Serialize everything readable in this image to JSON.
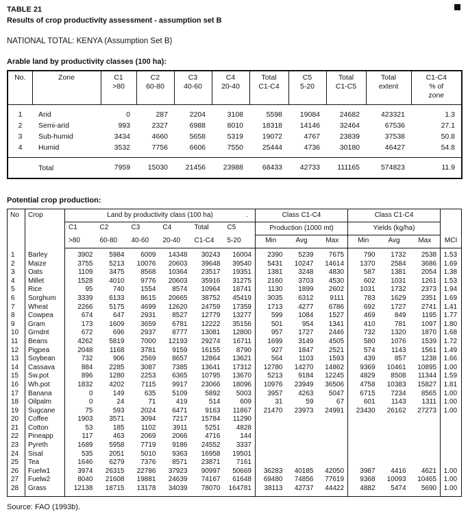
{
  "page": {
    "table_label": "TABLE 21",
    "title": "Results of crop productivity assessment - assumption set B",
    "subtitle": "NATIONAL TOTAL: KENYA (Assumption Set B)",
    "source": "Source: FAO (1993b)."
  },
  "arable_table": {
    "caption": "Arable land by productivity classes (100 ha):",
    "headers": [
      [
        "No."
      ],
      [
        "Zone"
      ],
      [
        "C1",
        ">80"
      ],
      [
        "C2",
        "60-80"
      ],
      [
        "C3",
        "40-60"
      ],
      [
        "C4",
        "20-40"
      ],
      [
        "Total",
        "C1-C4"
      ],
      [
        "C5",
        "5-20"
      ],
      [
        "Total",
        "C1-C5"
      ],
      [
        "Total",
        "extent"
      ],
      [
        "C1-C4",
        "% of",
        "zone"
      ]
    ],
    "rows": [
      [
        "1",
        "Arid",
        "0",
        "287",
        "2204",
        "3108",
        "5598",
        "19084",
        "24682",
        "423321",
        "1.3"
      ],
      [
        "2",
        "Semi-arid",
        "993",
        "2327",
        "6988",
        "8010",
        "18318",
        "14146",
        "32464",
        "67536",
        "27.1"
      ],
      [
        "3",
        "Sub-humid",
        "3434",
        "4660",
        "5658",
        "5319",
        "19072",
        "4767",
        "23839",
        "37538",
        "50.8"
      ],
      [
        "4",
        "Humid",
        "3532",
        "7756",
        "6606",
        "7550",
        "25444",
        "4736",
        "30180",
        "46427",
        "54.8"
      ]
    ],
    "total_row": [
      "",
      "Total",
      "7959",
      "15030",
      "21456",
      "23988",
      "68433",
      "42733",
      "111165",
      "574823",
      "11.9"
    ]
  },
  "production_table": {
    "caption": "Potential crop production:",
    "group_headers": {
      "no": "No",
      "crop": "Crop",
      "land": "Land by productivity class (100 ha)",
      "dot": ".",
      "class_production": "Class C1-C4",
      "class_yields": "Class C1-C4",
      "production": "Production (1000 mt)",
      "yields": "Yields (kg/ha)",
      "mci": "MCI"
    },
    "sub_headers": {
      "land_top": [
        "C1",
        "C2",
        "C3",
        "C4",
        "Total",
        "C5"
      ],
      "land_bottom": [
        ">80",
        "60-80",
        "40-60",
        "20-40",
        "C1-C4",
        "5-20"
      ],
      "minavgmax": [
        "Min",
        "Avg",
        "Max"
      ]
    },
    "rows": [
      [
        "1",
        "Barley",
        "3902",
        "5984",
        "6009",
        "14348",
        "30243",
        "16004",
        "2390",
        "5239",
        "7675",
        "790",
        "1732",
        "2538",
        "1.53"
      ],
      [
        "2",
        "Maize",
        "3755",
        "5213",
        "10076",
        "20603",
        "39648",
        "39540",
        "5431",
        "10247",
        "14614",
        "1370",
        "2584",
        "3686",
        "1.69"
      ],
      [
        "3",
        "Oats",
        "1109",
        "3475",
        "8568",
        "10364",
        "23517",
        "19351",
        "1381",
        "3248",
        "4830",
        "587",
        "1381",
        "2054",
        "1.38"
      ],
      [
        "4",
        "Millet",
        "1528",
        "4010",
        "9776",
        "20603",
        "35916",
        "31275",
        "2160",
        "3703",
        "4530",
        "602",
        "1031",
        "1261",
        "1.53"
      ],
      [
        "5",
        "Rice",
        "95",
        "740",
        "1554",
        "8574",
        "10964",
        "18741",
        "1130",
        "1899",
        "2602",
        "1031",
        "1732",
        "2373",
        "1.94"
      ],
      [
        "6",
        "Sorghum",
        "3339",
        "6133",
        "8615",
        "20665",
        "38752",
        "45419",
        "3035",
        "6312",
        "9111",
        "783",
        "1629",
        "2351",
        "1.69"
      ],
      [
        "7",
        "Wheat",
        "2266",
        "5175",
        "4699",
        "12620",
        "24759",
        "17359",
        "1713",
        "4277",
        "6786",
        "692",
        "1727",
        "2741",
        "1.41"
      ],
      [
        "8",
        "Cowpea",
        "674",
        "647",
        "2931",
        "8527",
        "12779",
        "13277",
        "599",
        "1084",
        "1527",
        "469",
        "849",
        "1195",
        "1.77"
      ],
      [
        "9",
        "Gram",
        "173",
        "1609",
        "3659",
        "6781",
        "12222",
        "35156",
        "501",
        "954",
        "1341",
        "410",
        "781",
        "1097",
        "1.80"
      ],
      [
        "10",
        "Grndnt",
        "672",
        "696",
        "2937",
        "8777",
        "13081",
        "12800",
        "957",
        "1727",
        "2446",
        "732",
        "1320",
        "1870",
        "1.68"
      ],
      [
        "11",
        "Beans",
        "4262",
        "5819",
        "7000",
        "12193",
        "29274",
        "16711",
        "1699",
        "3149",
        "4505",
        "580",
        "1076",
        "1539",
        "1.72"
      ],
      [
        "12",
        "Pigpea",
        "2048",
        "1168",
        "3781",
        "9159",
        "16155",
        "8790",
        "927",
        "1847",
        "2521",
        "574",
        "1143",
        "1561",
        "1.49"
      ],
      [
        "13",
        "Soybean",
        "732",
        "906",
        "2569",
        "8657",
        "12864",
        "13621",
        "564",
        "1103",
        "1593",
        "439",
        "857",
        "1238",
        "1.66"
      ],
      [
        "14",
        "Cassava",
        "884",
        "2285",
        "3087",
        "7385",
        "13641",
        "17312",
        "12780",
        "14270",
        "14862",
        "9369",
        "10461",
        "10895",
        "1.00"
      ],
      [
        "15",
        "Sw.pot",
        "896",
        "1280",
        "2253",
        "6365",
        "10795",
        "13670",
        "5213",
        "9184",
        "12245",
        "4829",
        "8508",
        "11344",
        "1.59"
      ],
      [
        "16",
        "Wh.pot",
        "1832",
        "4202",
        "7115",
        "9917",
        "23066",
        "18096",
        "10976",
        "23949",
        "36506",
        "4758",
        "10383",
        "15827",
        "1.81"
      ],
      [
        "17",
        "Banana",
        "0",
        "149",
        "635",
        "5109",
        "5892",
        "5003",
        "3957",
        "4263",
        "5047",
        "6715",
        "7234",
        "8565",
        "1.00"
      ],
      [
        "18",
        "Oilpalm",
        "0",
        "24",
        "71",
        "419",
        "514",
        "609",
        "31",
        "59",
        "67",
        "601",
        "1143",
        "1311",
        "1.00"
      ],
      [
        "19",
        "Sugcane",
        "75",
        "593",
        "2024",
        "6471",
        "9163",
        "11867",
        "21470",
        "23973",
        "24991",
        "23430",
        "26162",
        "27273",
        "1.00"
      ],
      [
        "20",
        "Coffee",
        "1903",
        "3571",
        "3094",
        "7217",
        "15784",
        "11290",
        "",
        "",
        "",
        "",
        "",
        "",
        ""
      ],
      [
        "21",
        "Cotton",
        "53",
        "185",
        "1102",
        "3911",
        "5251",
        "4828",
        "",
        "",
        "",
        "",
        "",
        "",
        ""
      ],
      [
        "22",
        "Pineapp",
        "117",
        "463",
        "2069",
        "2066",
        "4716",
        "144",
        "",
        "",
        "",
        "",
        "",
        "",
        ""
      ],
      [
        "23",
        "Pyreth",
        "1689",
        "5958",
        "7719",
        "9186",
        "24552",
        "3337",
        "",
        "",
        "",
        "",
        "",
        "",
        ""
      ],
      [
        "24",
        "Sisal",
        "535",
        "2051",
        "5010",
        "9363",
        "16958",
        "19501",
        "",
        "",
        "",
        "",
        "",
        "",
        ""
      ],
      [
        "25",
        "Tea",
        "1646",
        "6279",
        "7376",
        "8571",
        "23871",
        "7161",
        "",
        "",
        "",
        "",
        "",
        "",
        ""
      ],
      [
        "26",
        "Fuelw1",
        "3974",
        "26315",
        "22786",
        "37923",
        "90997",
        "50669",
        "36283",
        "40185",
        "42050",
        "3987",
        "4416",
        "4621",
        "1.00"
      ],
      [
        "27",
        "Fuelw2",
        "8040",
        "21608",
        "19881",
        "24639",
        "74167",
        "61648",
        "69480",
        "74856",
        "77619",
        "9368",
        "10093",
        "10465",
        "1.00"
      ],
      [
        "28",
        "Grass",
        "12138",
        "18715",
        "13178",
        "34039",
        "78070",
        "164781",
        "38113",
        "42737",
        "44422",
        "4882",
        "5474",
        "5690",
        "1.00"
      ]
    ]
  }
}
